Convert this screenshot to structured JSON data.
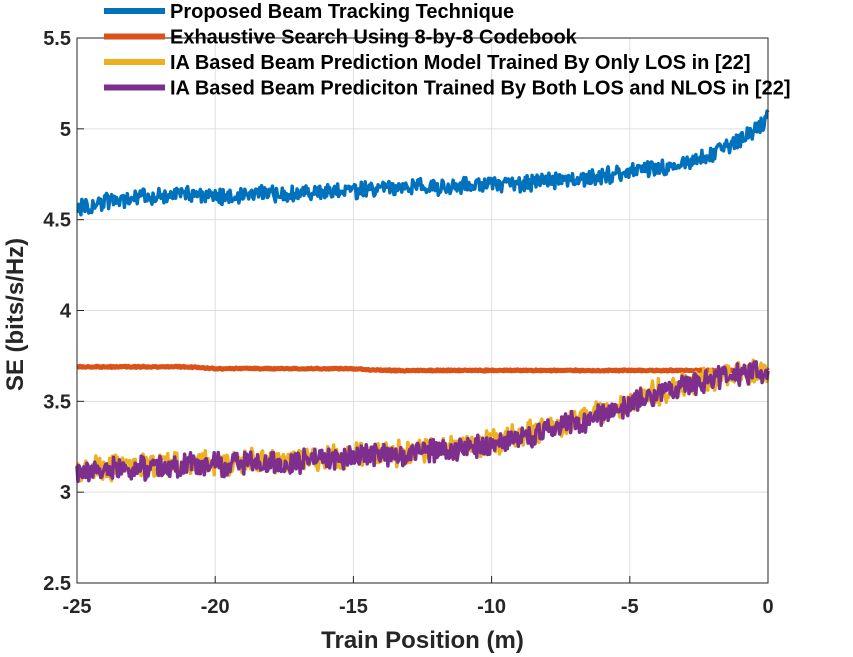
{
  "chart_data": {
    "type": "line",
    "xlabel": "Train Position (m)",
    "ylabel": "SE (bits/s/Hz)",
    "xlim": [
      -25,
      0
    ],
    "ylim": [
      2.5,
      5.5
    ],
    "xticks": [
      "-25",
      "-20",
      "-15",
      "-10",
      "-5",
      "0"
    ],
    "yticks": [
      "2.5",
      "3",
      "3.5",
      "4",
      "4.5",
      "5",
      "5.5"
    ],
    "grid": true,
    "legend_position": "top",
    "x": [
      -25,
      -24,
      -23,
      -22,
      -21,
      -20,
      -19,
      -18,
      -17,
      -16,
      -15,
      -14,
      -13,
      -12,
      -11,
      -10,
      -9,
      -8,
      -7,
      -6,
      -5,
      -4,
      -3,
      -2,
      -1,
      0
    ],
    "series": [
      {
        "name": "Proposed Beam Tracking Technique",
        "color": "#0072BD",
        "noise": 0.04,
        "values": [
          4.56,
          4.6,
          4.62,
          4.63,
          4.64,
          4.63,
          4.64,
          4.64,
          4.65,
          4.65,
          4.66,
          4.67,
          4.68,
          4.68,
          4.69,
          4.7,
          4.7,
          4.71,
          4.72,
          4.74,
          4.76,
          4.78,
          4.81,
          4.86,
          4.94,
          5.06
        ]
      },
      {
        "name": "Exhaustive Search Using 8-by-8 Codebook",
        "color": "#D95319",
        "noise": 0.003,
        "values": [
          3.69,
          3.69,
          3.69,
          3.69,
          3.69,
          3.68,
          3.68,
          3.68,
          3.68,
          3.68,
          3.68,
          3.67,
          3.67,
          3.67,
          3.67,
          3.67,
          3.67,
          3.67,
          3.67,
          3.67,
          3.67,
          3.67,
          3.67,
          3.67,
          3.67,
          3.67
        ]
      },
      {
        "name": "IA Based Beam Prediction Model Trained By Only LOS in [22]",
        "color": "#EDB120",
        "noise": 0.06,
        "values": [
          3.12,
          3.13,
          3.14,
          3.15,
          3.16,
          3.16,
          3.17,
          3.17,
          3.18,
          3.19,
          3.2,
          3.21,
          3.22,
          3.24,
          3.25,
          3.27,
          3.31,
          3.35,
          3.39,
          3.44,
          3.5,
          3.55,
          3.59,
          3.63,
          3.66,
          3.68
        ]
      },
      {
        "name": "IA Based Beam Prediciton Trained By Both LOS and NLOS in [22]",
        "color": "#7E2F8E",
        "noise": 0.055,
        "values": [
          3.11,
          3.12,
          3.13,
          3.14,
          3.15,
          3.15,
          3.16,
          3.16,
          3.17,
          3.18,
          3.19,
          3.2,
          3.21,
          3.23,
          3.24,
          3.26,
          3.3,
          3.34,
          3.38,
          3.43,
          3.49,
          3.54,
          3.58,
          3.62,
          3.65,
          3.68
        ]
      }
    ]
  }
}
